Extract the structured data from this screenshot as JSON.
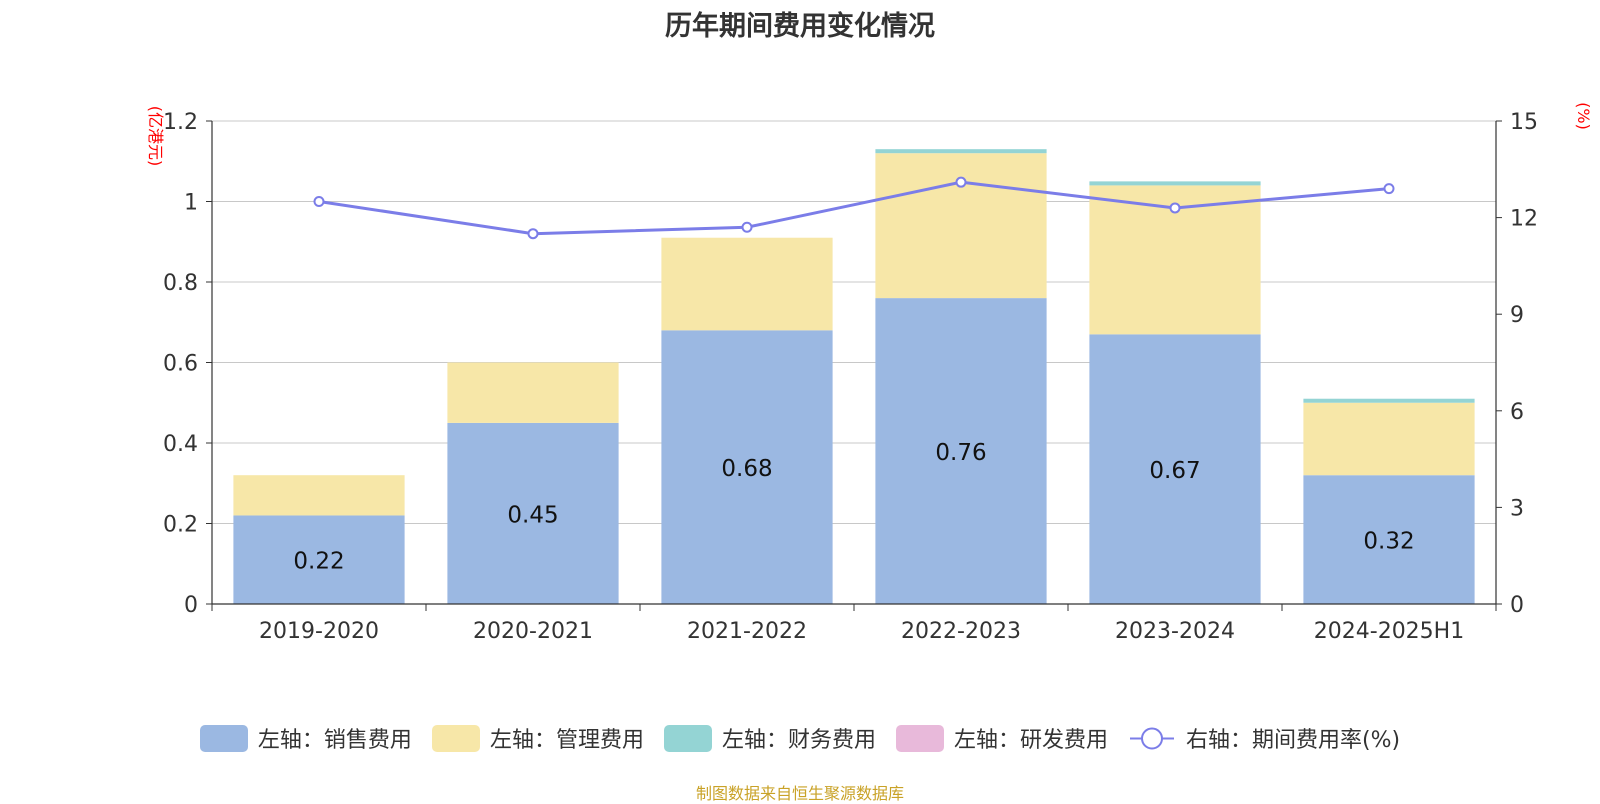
{
  "title": "历年期间费用变化情况",
  "source": "制图数据来自恒生聚源数据库",
  "colors": {
    "sales": "#9bb8e2",
    "admin": "#f7e7a8",
    "finance": "#94d4d4",
    "rnd": "#e8b9da",
    "rate": "#7b7de8",
    "axis_unit": "#ff0000",
    "grid": "#c8c8c8"
  },
  "chart_data": {
    "type": "bar",
    "stacked": true,
    "title": "历年期间费用变化情况",
    "categories": [
      "2019-2020",
      "2020-2021",
      "2021-2022",
      "2022-2023",
      "2023-2024",
      "2024-2025H1"
    ],
    "left_axis": {
      "unit": "(亿港元)",
      "ylim": [
        0,
        1.2
      ],
      "ticks": [
        "0",
        "0.2",
        "0.4",
        "0.6",
        "0.8",
        "1",
        "1.2"
      ]
    },
    "right_axis": {
      "unit": "(%)",
      "ylim": [
        0,
        15
      ],
      "ticks": [
        "0",
        "3",
        "6",
        "9",
        "12",
        "15"
      ]
    },
    "series": [
      {
        "name": "左轴：销售费用",
        "key": "sales",
        "values": [
          0.22,
          0.45,
          0.68,
          0.76,
          0.67,
          0.32
        ],
        "labels": [
          "0.22",
          "0.45",
          "0.68",
          "0.76",
          "0.67",
          "0.32"
        ]
      },
      {
        "name": "左轴：管理费用",
        "key": "admin",
        "values": [
          0.1,
          0.15,
          0.23,
          0.36,
          0.37,
          0.18
        ]
      },
      {
        "name": "左轴：财务费用",
        "key": "finance",
        "values": [
          0,
          0,
          0,
          0.01,
          0.01,
          0.01
        ]
      },
      {
        "name": "左轴：研发费用",
        "key": "rnd",
        "values": [
          0,
          0,
          0,
          0,
          0,
          0
        ]
      }
    ],
    "line_series": {
      "name": "右轴：期间费用率(%)",
      "key": "rate",
      "values": [
        12.5,
        11.5,
        11.7,
        13.1,
        12.3,
        12.9
      ]
    },
    "grid": true,
    "legend_position": "bottom"
  }
}
